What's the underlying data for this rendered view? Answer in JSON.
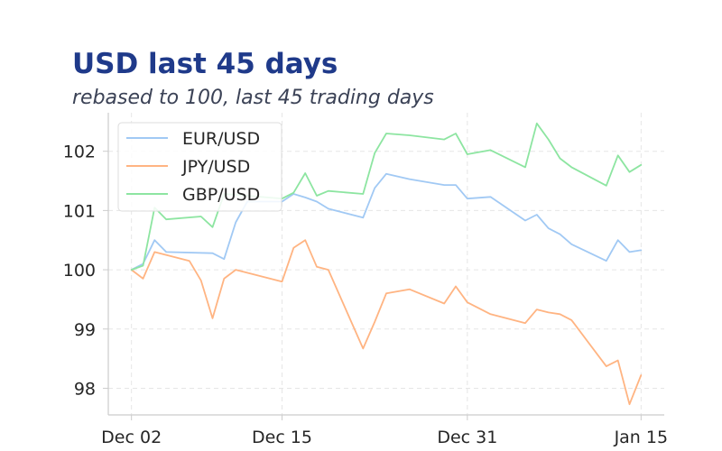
{
  "chart_data": {
    "type": "line",
    "title": "USD last 45 days",
    "subtitle": "rebased to 100, last 45 trading days",
    "xlabel": "",
    "ylabel": "",
    "x": [
      "2024-12-02",
      "2024-12-03",
      "2024-12-04",
      "2024-12-05",
      "2024-12-09",
      "2024-12-10",
      "2024-12-11",
      "2024-12-12",
      "2024-12-13",
      "2024-12-16",
      "2024-12-17",
      "2024-12-18",
      "2024-12-19",
      "2024-12-20",
      "2024-12-23",
      "2024-12-24",
      "2024-12-26",
      "2024-12-27",
      "2024-12-29",
      "2024-12-30",
      "2024-12-31",
      "2025-01-01",
      "2025-01-02",
      "2025-01-03",
      "2025-01-06",
      "2025-01-07",
      "2025-01-08",
      "2025-01-09",
      "2025-01-10",
      "2025-01-13",
      "2025-01-14",
      "2025-01-15",
      "2024-12-06",
      "2024-12-12b"
    ],
    "series": [
      {
        "name": "EUR/USD",
        "color": "#a1c9f4",
        "points": [
          [
            "2024-12-02",
            100.0
          ],
          [
            "2024-12-03",
            100.1
          ],
          [
            "2024-12-04",
            100.5
          ],
          [
            "2024-12-05",
            100.3
          ],
          [
            "2024-12-09",
            100.28
          ],
          [
            "2024-12-10",
            100.18
          ],
          [
            "2024-12-11",
            100.8
          ],
          [
            "2024-12-12",
            101.15
          ],
          [
            "2024-12-13",
            101.15
          ],
          [
            "2024-12-14",
            101.15
          ],
          [
            "2024-12-15",
            101.15
          ],
          [
            "2024-12-16",
            101.28
          ],
          [
            "2024-12-17",
            101.22
          ],
          [
            "2024-12-18",
            101.15
          ],
          [
            "2024-12-19",
            101.03
          ],
          [
            "2024-12-22",
            100.88
          ],
          [
            "2024-12-23",
            101.38
          ],
          [
            "2024-12-24",
            101.62
          ],
          [
            "2024-12-26",
            101.53
          ],
          [
            "2024-12-29",
            101.43
          ],
          [
            "2024-12-30",
            101.43
          ],
          [
            "2024-12-31",
            101.2
          ],
          [
            "2025-01-02",
            101.23
          ],
          [
            "2025-01-05",
            100.83
          ],
          [
            "2025-01-06",
            100.93
          ],
          [
            "2025-01-07",
            100.7
          ],
          [
            "2025-01-08",
            100.6
          ],
          [
            "2025-01-09",
            100.43
          ],
          [
            "2025-01-12",
            100.15
          ],
          [
            "2025-01-13",
            100.5
          ],
          [
            "2025-01-14",
            100.3
          ],
          [
            "2025-01-15",
            100.33
          ]
        ]
      },
      {
        "name": "JPY/USD",
        "color": "#ffb482",
        "points": [
          [
            "2024-12-02",
            100.0
          ],
          [
            "2024-12-03",
            99.85
          ],
          [
            "2024-12-04",
            100.3
          ],
          [
            "2024-12-07",
            100.15
          ],
          [
            "2024-12-08",
            99.82
          ],
          [
            "2024-12-09",
            99.18
          ],
          [
            "2024-12-10",
            99.85
          ],
          [
            "2024-12-11",
            100.0
          ],
          [
            "2024-12-15",
            99.8
          ],
          [
            "2024-12-16",
            100.37
          ],
          [
            "2024-12-17",
            100.5
          ],
          [
            "2024-12-18",
            100.05
          ],
          [
            "2024-12-19",
            100.0
          ],
          [
            "2024-12-22",
            98.67
          ],
          [
            "2024-12-23",
            99.12
          ],
          [
            "2024-12-24",
            99.6
          ],
          [
            "2024-12-26",
            99.67
          ],
          [
            "2024-12-29",
            99.43
          ],
          [
            "2024-12-30",
            99.72
          ],
          [
            "2024-12-31",
            99.45
          ],
          [
            "2025-01-02",
            99.25
          ],
          [
            "2025-01-05",
            99.1
          ],
          [
            "2025-01-06",
            99.33
          ],
          [
            "2025-01-07",
            99.28
          ],
          [
            "2025-01-08",
            99.25
          ],
          [
            "2025-01-09",
            99.15
          ],
          [
            "2025-01-12",
            98.37
          ],
          [
            "2025-01-13",
            98.47
          ],
          [
            "2025-01-14",
            97.73
          ],
          [
            "2025-01-15",
            98.22
          ]
        ]
      },
      {
        "name": "GBP/USD",
        "color": "#8de5a1",
        "points": [
          [
            "2024-12-02",
            100.0
          ],
          [
            "2024-12-03",
            100.07
          ],
          [
            "2024-12-04",
            101.05
          ],
          [
            "2024-12-05",
            100.85
          ],
          [
            "2024-12-08",
            100.9
          ],
          [
            "2024-12-09",
            100.72
          ],
          [
            "2024-12-10",
            101.28
          ],
          [
            "2024-12-15",
            101.2
          ],
          [
            "2024-12-16",
            101.3
          ],
          [
            "2024-12-17",
            101.63
          ],
          [
            "2024-12-18",
            101.25
          ],
          [
            "2024-12-19",
            101.33
          ],
          [
            "2024-12-22",
            101.28
          ],
          [
            "2024-12-23",
            101.97
          ],
          [
            "2024-12-24",
            102.3
          ],
          [
            "2024-12-26",
            102.27
          ],
          [
            "2024-12-29",
            102.2
          ],
          [
            "2024-12-30",
            102.3
          ],
          [
            "2024-12-31",
            101.95
          ],
          [
            "2025-01-02",
            102.02
          ],
          [
            "2025-01-05",
            101.73
          ],
          [
            "2025-01-06",
            102.47
          ],
          [
            "2025-01-07",
            102.2
          ],
          [
            "2025-01-08",
            101.88
          ],
          [
            "2025-01-09",
            101.73
          ],
          [
            "2025-01-12",
            101.42
          ],
          [
            "2025-01-13",
            101.93
          ],
          [
            "2025-01-14",
            101.65
          ],
          [
            "2025-01-15",
            101.77
          ]
        ]
      }
    ],
    "x_ticks": [
      {
        "date": "2024-12-02",
        "label": "Dec 02"
      },
      {
        "date": "2024-12-15",
        "label": "Dec 15"
      },
      {
        "date": "2024-12-31",
        "label": "Dec 31"
      },
      {
        "date": "2025-01-15",
        "label": "Jan 15"
      }
    ],
    "y_ticks": [
      98,
      99,
      100,
      101,
      102
    ],
    "xlim": [
      "2024-11-30",
      "2025-01-17"
    ],
    "ylim": [
      97.55,
      102.65
    ],
    "grid": true,
    "legend_position": "top-left"
  }
}
